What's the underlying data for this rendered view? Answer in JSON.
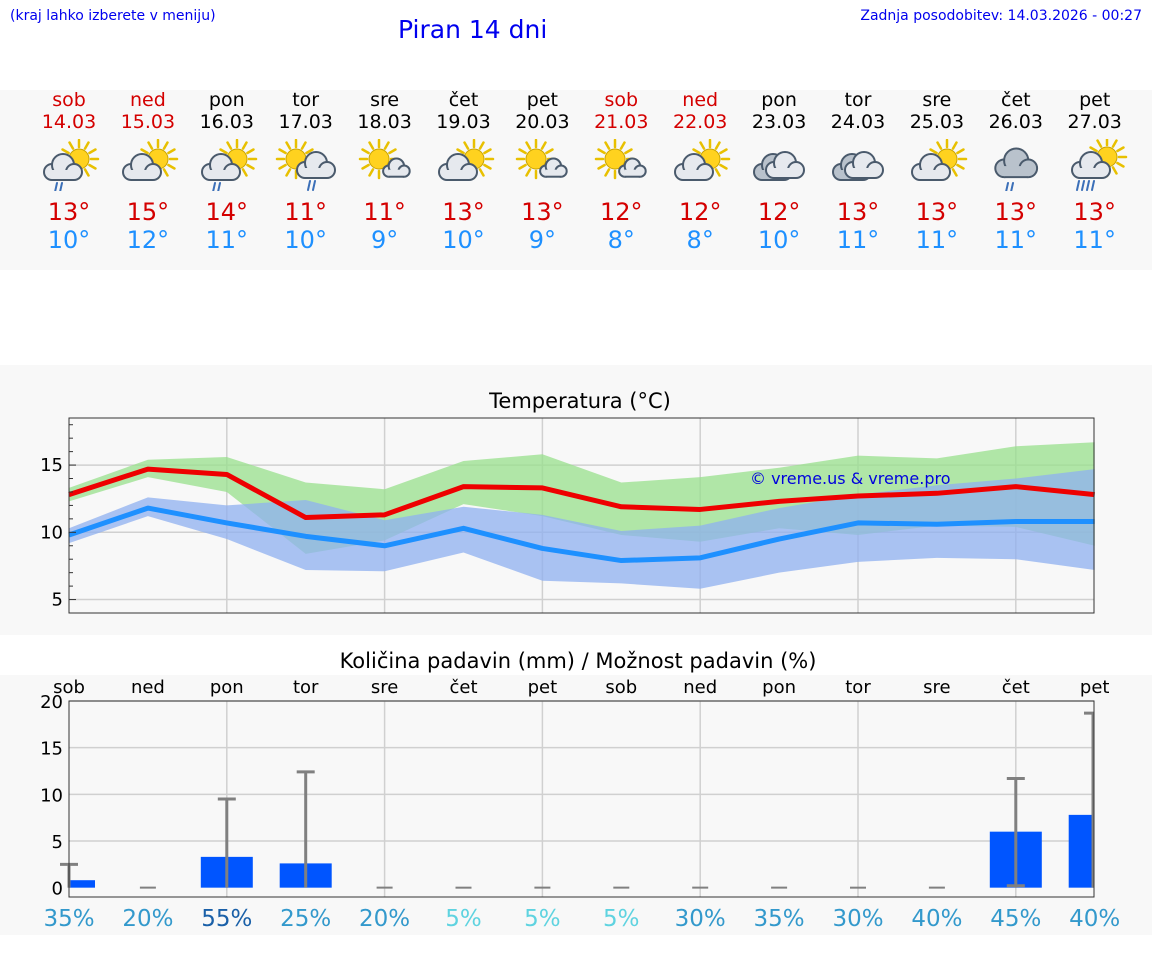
{
  "header": {
    "location_hint": "(kraj lahko izberete v meniju)",
    "title": "Piran 14 dni",
    "updated": "Zadnja posodobitev: 14.03.2026 - 00:27"
  },
  "days": [
    {
      "name": "sob",
      "date": "14.03",
      "weekend": true,
      "icon": "partly-sunny-rain-icon",
      "max": "13°",
      "min": "10°",
      "chance": "35%"
    },
    {
      "name": "ned",
      "date": "15.03",
      "weekend": true,
      "icon": "partly-cloudy-icon",
      "max": "15°",
      "min": "12°",
      "chance": "20%"
    },
    {
      "name": "pon",
      "date": "16.03",
      "weekend": false,
      "icon": "partly-sunny-rain-icon",
      "max": "14°",
      "min": "11°",
      "chance": "55%"
    },
    {
      "name": "tor",
      "date": "17.03",
      "weekend": false,
      "icon": "sun-rain-cloud-icon",
      "max": "11°",
      "min": "10°",
      "chance": "25%"
    },
    {
      "name": "sre",
      "date": "18.03",
      "weekend": false,
      "icon": "mostly-sunny-icon",
      "max": "11°",
      "min": "9°",
      "chance": "20%"
    },
    {
      "name": "čet",
      "date": "19.03",
      "weekend": false,
      "icon": "partly-cloudy-icon",
      "max": "13°",
      "min": "10°",
      "chance": "5%"
    },
    {
      "name": "pet",
      "date": "20.03",
      "weekend": false,
      "icon": "mostly-sunny-icon",
      "max": "13°",
      "min": "9°",
      "chance": "5%"
    },
    {
      "name": "sob",
      "date": "21.03",
      "weekend": true,
      "icon": "mostly-sunny-icon",
      "max": "12°",
      "min": "8°",
      "chance": "5%"
    },
    {
      "name": "ned",
      "date": "22.03",
      "weekend": true,
      "icon": "partly-cloudy-icon",
      "max": "12°",
      "min": "8°",
      "chance": "30%"
    },
    {
      "name": "pon",
      "date": "23.03",
      "weekend": false,
      "icon": "cloudy-icon",
      "max": "12°",
      "min": "10°",
      "chance": "35%"
    },
    {
      "name": "tor",
      "date": "24.03",
      "weekend": false,
      "icon": "cloudy-icon",
      "max": "13°",
      "min": "11°",
      "chance": "30%"
    },
    {
      "name": "sre",
      "date": "25.03",
      "weekend": false,
      "icon": "partly-cloudy-icon",
      "max": "13°",
      "min": "11°",
      "chance": "40%"
    },
    {
      "name": "čet",
      "date": "26.03",
      "weekend": false,
      "icon": "cloud-rain-icon",
      "max": "13°",
      "min": "11°",
      "chance": "45%"
    },
    {
      "name": "pet",
      "date": "27.03",
      "weekend": false,
      "icon": "sun-heavy-rain-icon",
      "max": "13°",
      "min": "11°",
      "chance": "40%"
    }
  ],
  "colors": {
    "max": "#ee0000",
    "min": "#1e90ff",
    "band_max": "#98e08c",
    "band_min": "#8fb0f0",
    "bar": "#0055ff",
    "error": "#808080"
  },
  "chart_data": [
    {
      "type": "line",
      "title": "Temperatura (°C)",
      "watermark": "© vreme.us & vreme.pro",
      "ylim": [
        4,
        18.5
      ],
      "yticks": [
        5,
        10,
        15
      ],
      "series": [
        {
          "name": "max",
          "values": [
            12.8,
            14.7,
            14.3,
            11.1,
            11.3,
            13.4,
            13.3,
            11.9,
            11.7,
            12.3,
            12.7,
            12.9,
            13.4,
            12.8
          ]
        },
        {
          "name": "min",
          "values": [
            9.8,
            11.8,
            10.7,
            9.7,
            9.0,
            10.3,
            8.8,
            7.9,
            8.1,
            9.5,
            10.7,
            10.6,
            10.8,
            10.8
          ]
        }
      ],
      "bands": [
        {
          "name": "max_range",
          "upper": [
            13.3,
            15.4,
            15.6,
            13.7,
            13.2,
            15.3,
            15.8,
            13.7,
            14.1,
            14.8,
            15.7,
            15.5,
            16.4,
            16.7
          ],
          "lower": [
            12.3,
            14.1,
            13.0,
            8.4,
            9.4,
            12.1,
            11.2,
            9.8,
            9.3,
            10.3,
            9.8,
            10.5,
            10.4,
            9.0
          ]
        },
        {
          "name": "min_range",
          "upper": [
            10.3,
            12.6,
            12.0,
            12.4,
            10.9,
            11.9,
            11.3,
            10.1,
            10.5,
            11.8,
            12.8,
            13.5,
            14.0,
            14.7
          ],
          "lower": [
            9.2,
            11.2,
            9.5,
            7.2,
            7.1,
            8.5,
            6.4,
            6.2,
            5.8,
            7.0,
            7.8,
            8.1,
            8.0,
            7.2
          ]
        }
      ]
    },
    {
      "type": "bar",
      "title": "Količina padavin (mm) / Možnost padavin (%)",
      "ylim": [
        -1,
        20
      ],
      "yticks": [
        0,
        5,
        10,
        15,
        20
      ],
      "values": [
        0.8,
        0,
        3.3,
        2.6,
        0,
        0,
        0,
        0,
        0,
        0,
        0,
        0,
        6.0,
        7.8
      ],
      "error_upper": [
        2.5,
        0,
        9.5,
        12.4,
        0,
        0,
        0,
        0,
        0,
        0,
        0,
        0,
        11.7,
        18.7
      ],
      "error_lower": [
        0,
        0,
        0,
        0,
        0,
        0,
        0,
        0,
        0,
        0,
        0,
        0,
        0.2,
        0
      ],
      "percent_colors": [
        "#3399cc",
        "#3399cc",
        "#1a60a8",
        "#3399cc",
        "#3399cc",
        "#5fd3e0",
        "#5fd3e0",
        "#5fd3e0",
        "#3399cc",
        "#3399cc",
        "#3399cc",
        "#3399cc",
        "#3399cc",
        "#3399cc"
      ]
    }
  ]
}
